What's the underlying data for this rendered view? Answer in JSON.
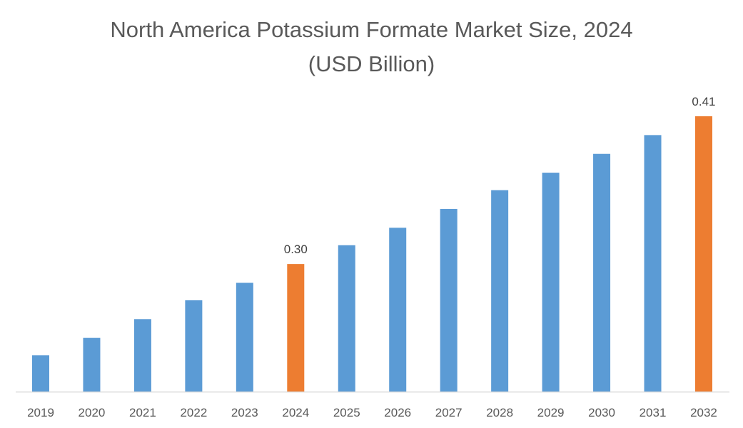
{
  "chart_data": {
    "type": "bar",
    "title": "North America Potassium Formate Market Size, 2024",
    "subtitle": "(USD Billion)",
    "xlabel": "",
    "ylabel": "",
    "categories": [
      "2019",
      "2020",
      "2021",
      "2022",
      "2023",
      "2024",
      "2025",
      "2026",
      "2027",
      "2028",
      "2029",
      "2030",
      "2031",
      "2032"
    ],
    "values": [
      0.232,
      0.245,
      0.259,
      0.273,
      0.286,
      0.3,
      0.314,
      0.327,
      0.341,
      0.355,
      0.368,
      0.382,
      0.396,
      0.41
    ],
    "data_labels": {
      "5": "0.30",
      "13": "0.41"
    },
    "highlighted": [
      5,
      13
    ],
    "ylim": [
      0.205,
      0.425
    ],
    "grid": false,
    "y_axis_visible": false,
    "colors": {
      "default": "#5B9BD5",
      "highlight": "#ED7D31",
      "axis": "#D9D9D9",
      "text": "#595959"
    }
  }
}
